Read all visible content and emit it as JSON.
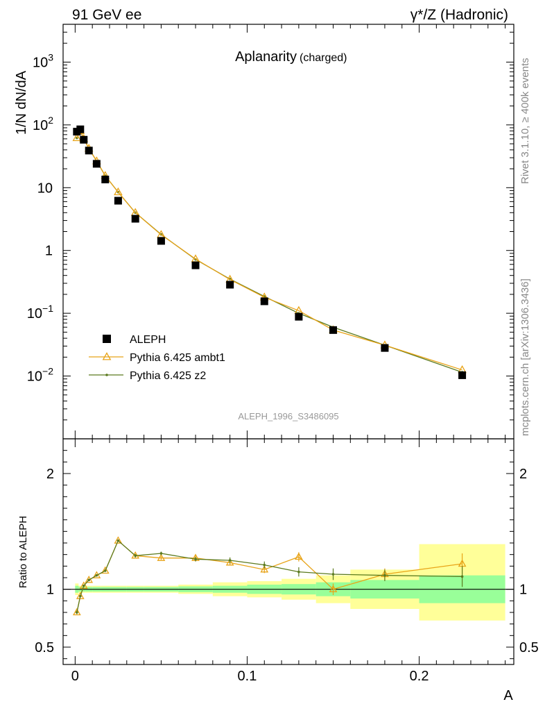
{
  "header": {
    "left": "91 GeV ee",
    "right": "γ*/Z (Hadronic)"
  },
  "side": {
    "rivet": "Rivet 3.1.10, ≥ 400k events",
    "mcplots": "mcplots.cern.ch [arXiv:1306.3436]"
  },
  "chart_data": [
    {
      "panel": "main",
      "type": "scatter",
      "title": "Aplanarity",
      "subtitle": "(charged)",
      "ylabel": "1/N dN/dA",
      "yscale": "log",
      "ylim": [
        0.001,
        4000
      ],
      "xlim": [
        -0.007,
        0.255
      ],
      "yticks": [
        {
          "v": 0.01,
          "base": "10",
          "exp": "−2"
        },
        {
          "v": 0.1,
          "base": "10",
          "exp": "−1"
        },
        {
          "v": 1,
          "base": "1",
          "exp": ""
        },
        {
          "v": 10,
          "base": "10",
          "exp": ""
        },
        {
          "v": 100,
          "base": "10",
          "exp": "2"
        },
        {
          "v": 1000,
          "base": "10",
          "exp": "3"
        }
      ],
      "watermark": "ALEPH_1996_S3486095",
      "legend": {
        "position": "lower-left",
        "entries": [
          "ALEPH",
          "Pythia 6.425 ambt1",
          "Pythia 6.425 z2"
        ]
      },
      "x": [
        0.001,
        0.003,
        0.005,
        0.008,
        0.0125,
        0.0175,
        0.025,
        0.035,
        0.05,
        0.07,
        0.09,
        0.11,
        0.13,
        0.15,
        0.18,
        0.225
      ],
      "series": [
        {
          "name": "ALEPH",
          "color": "#000000",
          "marker": "square",
          "values": [
            78,
            85,
            58,
            39,
            24,
            13.5,
            6.2,
            3.2,
            1.42,
            0.58,
            0.285,
            0.155,
            0.088,
            0.054,
            0.028,
            0.0103
          ]
        },
        {
          "name": "Pythia 6.425 ambt1",
          "color": "#e8a317",
          "marker": "triangle",
          "values": [
            62,
            80,
            60,
            42,
            26.5,
            15.5,
            8.5,
            4.0,
            1.78,
            0.73,
            0.345,
            0.18,
            0.11,
            0.054,
            0.031,
            0.0125
          ]
        },
        {
          "name": "Pythia 6.425 z2",
          "color": "#5b7a1e",
          "marker": "dot",
          "values": [
            62,
            80,
            60,
            42,
            26.5,
            15.5,
            8.5,
            4.0,
            1.8,
            0.72,
            0.35,
            0.185,
            0.1,
            0.06,
            0.031,
            0.0115
          ]
        }
      ]
    },
    {
      "panel": "ratio",
      "type": "line",
      "ylabel": "Ratio to ALEPH",
      "xlabel": "A",
      "ylim": [
        0.35,
        2.3
      ],
      "xlim": [
        -0.007,
        0.255
      ],
      "yticks": [
        0.5,
        1,
        2
      ],
      "xticks": [
        0,
        0.1,
        0.2
      ],
      "xtick_labels": [
        "0",
        "0.1",
        "0.2"
      ],
      "ytick_labels": [
        "0.5",
        "1",
        "2"
      ],
      "reference": 1,
      "bands": [
        {
          "x0": 0,
          "x1": 0.002,
          "stat": [
            0.97,
            1.03
          ],
          "tot": [
            0.95,
            1.05
          ]
        },
        {
          "x0": 0.002,
          "x1": 0.004,
          "stat": [
            0.98,
            1.02
          ],
          "tot": [
            0.97,
            1.03
          ]
        },
        {
          "x0": 0.004,
          "x1": 0.006,
          "stat": [
            0.98,
            1.02
          ],
          "tot": [
            0.97,
            1.03
          ]
        },
        {
          "x0": 0.006,
          "x1": 0.01,
          "stat": [
            0.98,
            1.02
          ],
          "tot": [
            0.97,
            1.03
          ]
        },
        {
          "x0": 0.01,
          "x1": 0.015,
          "stat": [
            0.98,
            1.02
          ],
          "tot": [
            0.97,
            1.03
          ]
        },
        {
          "x0": 0.015,
          "x1": 0.02,
          "stat": [
            0.98,
            1.02
          ],
          "tot": [
            0.97,
            1.03
          ]
        },
        {
          "x0": 0.02,
          "x1": 0.03,
          "stat": [
            0.98,
            1.02
          ],
          "tot": [
            0.97,
            1.03
          ]
        },
        {
          "x0": 0.03,
          "x1": 0.04,
          "stat": [
            0.98,
            1.02
          ],
          "tot": [
            0.97,
            1.03
          ]
        },
        {
          "x0": 0.04,
          "x1": 0.06,
          "stat": [
            0.98,
            1.02
          ],
          "tot": [
            0.97,
            1.03
          ]
        },
        {
          "x0": 0.06,
          "x1": 0.08,
          "stat": [
            0.975,
            1.025
          ],
          "tot": [
            0.96,
            1.04
          ]
        },
        {
          "x0": 0.08,
          "x1": 0.1,
          "stat": [
            0.97,
            1.03
          ],
          "tot": [
            0.94,
            1.06
          ]
        },
        {
          "x0": 0.1,
          "x1": 0.12,
          "stat": [
            0.96,
            1.04
          ],
          "tot": [
            0.93,
            1.07
          ]
        },
        {
          "x0": 0.12,
          "x1": 0.14,
          "stat": [
            0.955,
            1.045
          ],
          "tot": [
            0.91,
            1.09
          ]
        },
        {
          "x0": 0.14,
          "x1": 0.16,
          "stat": [
            0.94,
            1.06
          ],
          "tot": [
            0.88,
            1.12
          ]
        },
        {
          "x0": 0.16,
          "x1": 0.2,
          "stat": [
            0.92,
            1.08
          ],
          "tot": [
            0.83,
            1.17
          ]
        },
        {
          "x0": 0.2,
          "x1": 0.25,
          "stat": [
            0.88,
            1.12
          ],
          "tot": [
            0.73,
            1.39
          ]
        }
      ],
      "x": [
        0.001,
        0.003,
        0.005,
        0.008,
        0.0125,
        0.0175,
        0.025,
        0.035,
        0.05,
        0.07,
        0.09,
        0.11,
        0.13,
        0.15,
        0.18,
        0.225
      ],
      "series": [
        {
          "name": "Pythia 6.425 ambt1",
          "color": "#e8a317",
          "marker": "triangle",
          "values": [
            0.8,
            0.94,
            1.03,
            1.08,
            1.12,
            1.16,
            1.42,
            1.29,
            1.27,
            1.27,
            1.23,
            1.17,
            1.28,
            1.0,
            1.13,
            1.22
          ],
          "errors": [
            0.015,
            0.01,
            0.01,
            0.01,
            0.01,
            0.01,
            0.01,
            0.015,
            0.015,
            0.02,
            0.025,
            0.03,
            0.04,
            0.05,
            0.05,
            0.09
          ]
        },
        {
          "name": "Pythia 6.425 z2",
          "color": "#5b7a1e",
          "marker": "dot",
          "values": [
            0.8,
            0.94,
            1.03,
            1.08,
            1.12,
            1.16,
            1.42,
            1.29,
            1.31,
            1.26,
            1.25,
            1.21,
            1.15,
            1.13,
            1.12,
            1.11
          ],
          "errors": [
            0.015,
            0.01,
            0.01,
            0.01,
            0.01,
            0.01,
            0.01,
            0.015,
            0.015,
            0.02,
            0.025,
            0.03,
            0.04,
            0.05,
            0.05,
            0.09
          ]
        }
      ]
    }
  ]
}
